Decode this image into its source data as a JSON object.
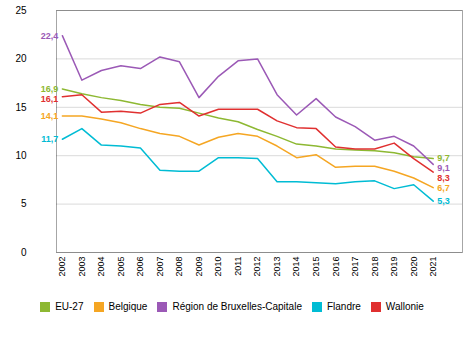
{
  "chart_data": {
    "type": "line",
    "x": [
      2002,
      2003,
      2004,
      2005,
      2006,
      2007,
      2008,
      2009,
      2010,
      2011,
      2012,
      2013,
      2014,
      2015,
      2016,
      2017,
      2018,
      2019,
      2020,
      2021
    ],
    "series": [
      {
        "name": "EU-27",
        "color": "#8db832",
        "values": [
          16.9,
          16.4,
          16.0,
          15.7,
          15.3,
          15.0,
          14.9,
          14.4,
          13.9,
          13.5,
          12.7,
          12.0,
          11.2,
          11.0,
          10.7,
          10.6,
          10.5,
          10.3,
          9.9,
          9.7
        ]
      },
      {
        "name": "Belgique",
        "color": "#f5a623",
        "values": [
          14.1,
          14.1,
          13.8,
          13.4,
          12.8,
          12.3,
          12.0,
          11.1,
          11.9,
          12.3,
          12.0,
          11.0,
          9.8,
          10.1,
          8.8,
          8.9,
          8.9,
          8.4,
          7.7,
          6.7
        ]
      },
      {
        "name": "Région de Bruxelles-Capitale",
        "color": "#9b59b6",
        "values": [
          22.4,
          17.8,
          18.8,
          19.3,
          19.0,
          20.2,
          19.7,
          16.0,
          18.2,
          19.8,
          20.0,
          16.3,
          14.2,
          15.9,
          14.0,
          13.0,
          11.6,
          12.0,
          11.0,
          9.1
        ]
      },
      {
        "name": "Flandre",
        "color": "#00bcd4",
        "values": [
          11.7,
          12.8,
          11.1,
          11.0,
          10.8,
          8.5,
          8.4,
          8.4,
          9.8,
          9.8,
          9.7,
          7.3,
          7.3,
          7.2,
          7.1,
          7.3,
          7.4,
          6.6,
          7.0,
          5.3
        ]
      },
      {
        "name": "Wallonie",
        "color": "#e03030",
        "values": [
          16.1,
          16.3,
          14.5,
          14.6,
          14.4,
          15.3,
          15.5,
          14.1,
          14.8,
          14.8,
          14.8,
          13.6,
          12.9,
          12.8,
          10.9,
          10.7,
          10.7,
          11.3,
          9.7,
          8.3
        ]
      }
    ],
    "xlim": [
      2001.7,
      2022.5
    ],
    "xticks": [
      2002,
      2003,
      2004,
      2005,
      2006,
      2007,
      2008,
      2009,
      2010,
      2011,
      2012,
      2013,
      2014,
      2015,
      2016,
      2017,
      2018,
      2019,
      2020,
      2021
    ],
    "ylim": [
      0,
      25
    ],
    "yticks": [
      0,
      5,
      10,
      15,
      20,
      25
    ],
    "grid": true,
    "legend": "bottom",
    "annotations": [
      {
        "text": "22,4",
        "x": 2002,
        "y": 22.4,
        "color": "#9b59b6"
      },
      {
        "text": "16,9",
        "x": 2002,
        "y": 16.9,
        "color": "#8db832"
      },
      {
        "text": "16,1",
        "x": 2002,
        "y": 16.1,
        "color": "#e03030"
      },
      {
        "text": "14,1",
        "x": 2002,
        "y": 14.1,
        "color": "#f5a623"
      },
      {
        "text": "11,7",
        "x": 2002,
        "y": 11.7,
        "color": "#00bcd4"
      },
      {
        "text": "9,7",
        "x": 2021,
        "y": 9.7,
        "color": "#8db832"
      },
      {
        "text": "9,1",
        "x": 2021,
        "y": 9.1,
        "color": "#9b59b6"
      },
      {
        "text": "8,3",
        "x": 2021,
        "y": 8.3,
        "color": "#e03030"
      },
      {
        "text": "6,7",
        "x": 2021,
        "y": 6.7,
        "color": "#f5a623"
      },
      {
        "text": "5,3",
        "x": 2021,
        "y": 5.3,
        "color": "#00bcd4"
      }
    ]
  }
}
